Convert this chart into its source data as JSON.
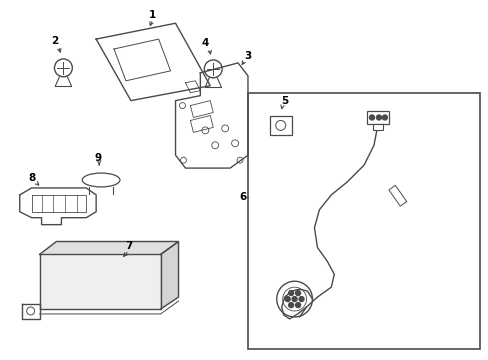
{
  "background_color": "#ffffff",
  "line_color": "#4a4a4a",
  "text_color": "#000000",
  "fig_width": 4.89,
  "fig_height": 3.6,
  "dpi": 100
}
